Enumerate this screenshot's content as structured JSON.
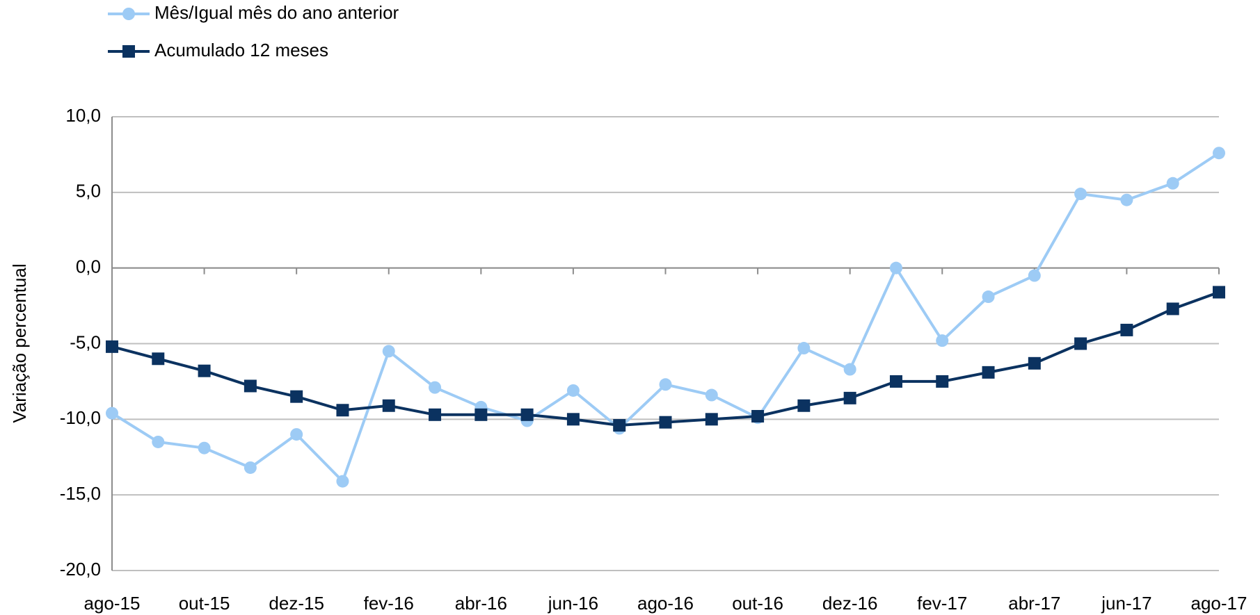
{
  "chart_data": {
    "type": "line",
    "y_label": "Variação percentual",
    "categories": [
      "ago-15",
      null,
      "out-15",
      null,
      "dez-15",
      null,
      "fev-16",
      null,
      "abr-16",
      null,
      "jun-16",
      null,
      "ago-16",
      null,
      "out-16",
      null,
      "dez-16",
      null,
      "fev-17",
      null,
      "abr-17",
      null,
      "jun-17",
      null,
      "ago-17"
    ],
    "series": [
      {
        "name": "Mês/Igual mês do ano anterior",
        "color": "#9dcbf5",
        "marker": "circle",
        "values": [
          -9.6,
          -11.5,
          -11.9,
          -13.2,
          -11.0,
          -14.1,
          -5.5,
          -7.9,
          -9.2,
          -10.1,
          -8.1,
          -10.6,
          -7.7,
          -8.4,
          -9.9,
          -5.3,
          -6.7,
          0.0,
          -4.8,
          -1.9,
          -0.5,
          4.9,
          4.5,
          5.6,
          7.6
        ]
      },
      {
        "name": "Acumulado 12 meses",
        "color": "#0b3260",
        "marker": "square",
        "values": [
          -5.2,
          -6.0,
          -6.8,
          -7.8,
          -8.5,
          -9.4,
          -9.1,
          -9.7,
          -9.7,
          -9.7,
          -10.0,
          -10.4,
          -10.2,
          -10.0,
          -9.8,
          -9.1,
          -8.6,
          -7.5,
          -7.5,
          -6.9,
          -6.3,
          -5.0,
          -4.1,
          -2.7,
          -1.6
        ]
      }
    ],
    "ylim": [
      -20,
      10
    ],
    "yticks": [
      {
        "value": -20,
        "label": "-20,0"
      },
      {
        "value": -15,
        "label": "-15,0"
      },
      {
        "value": -10,
        "label": "-10,0"
      },
      {
        "value": -5,
        "label": "-5,0"
      },
      {
        "value": 0,
        "label": "0,0"
      },
      {
        "value": 5,
        "label": "5,0"
      },
      {
        "value": 10,
        "label": "10,0"
      }
    ],
    "grid": true,
    "legend": "top-left"
  }
}
